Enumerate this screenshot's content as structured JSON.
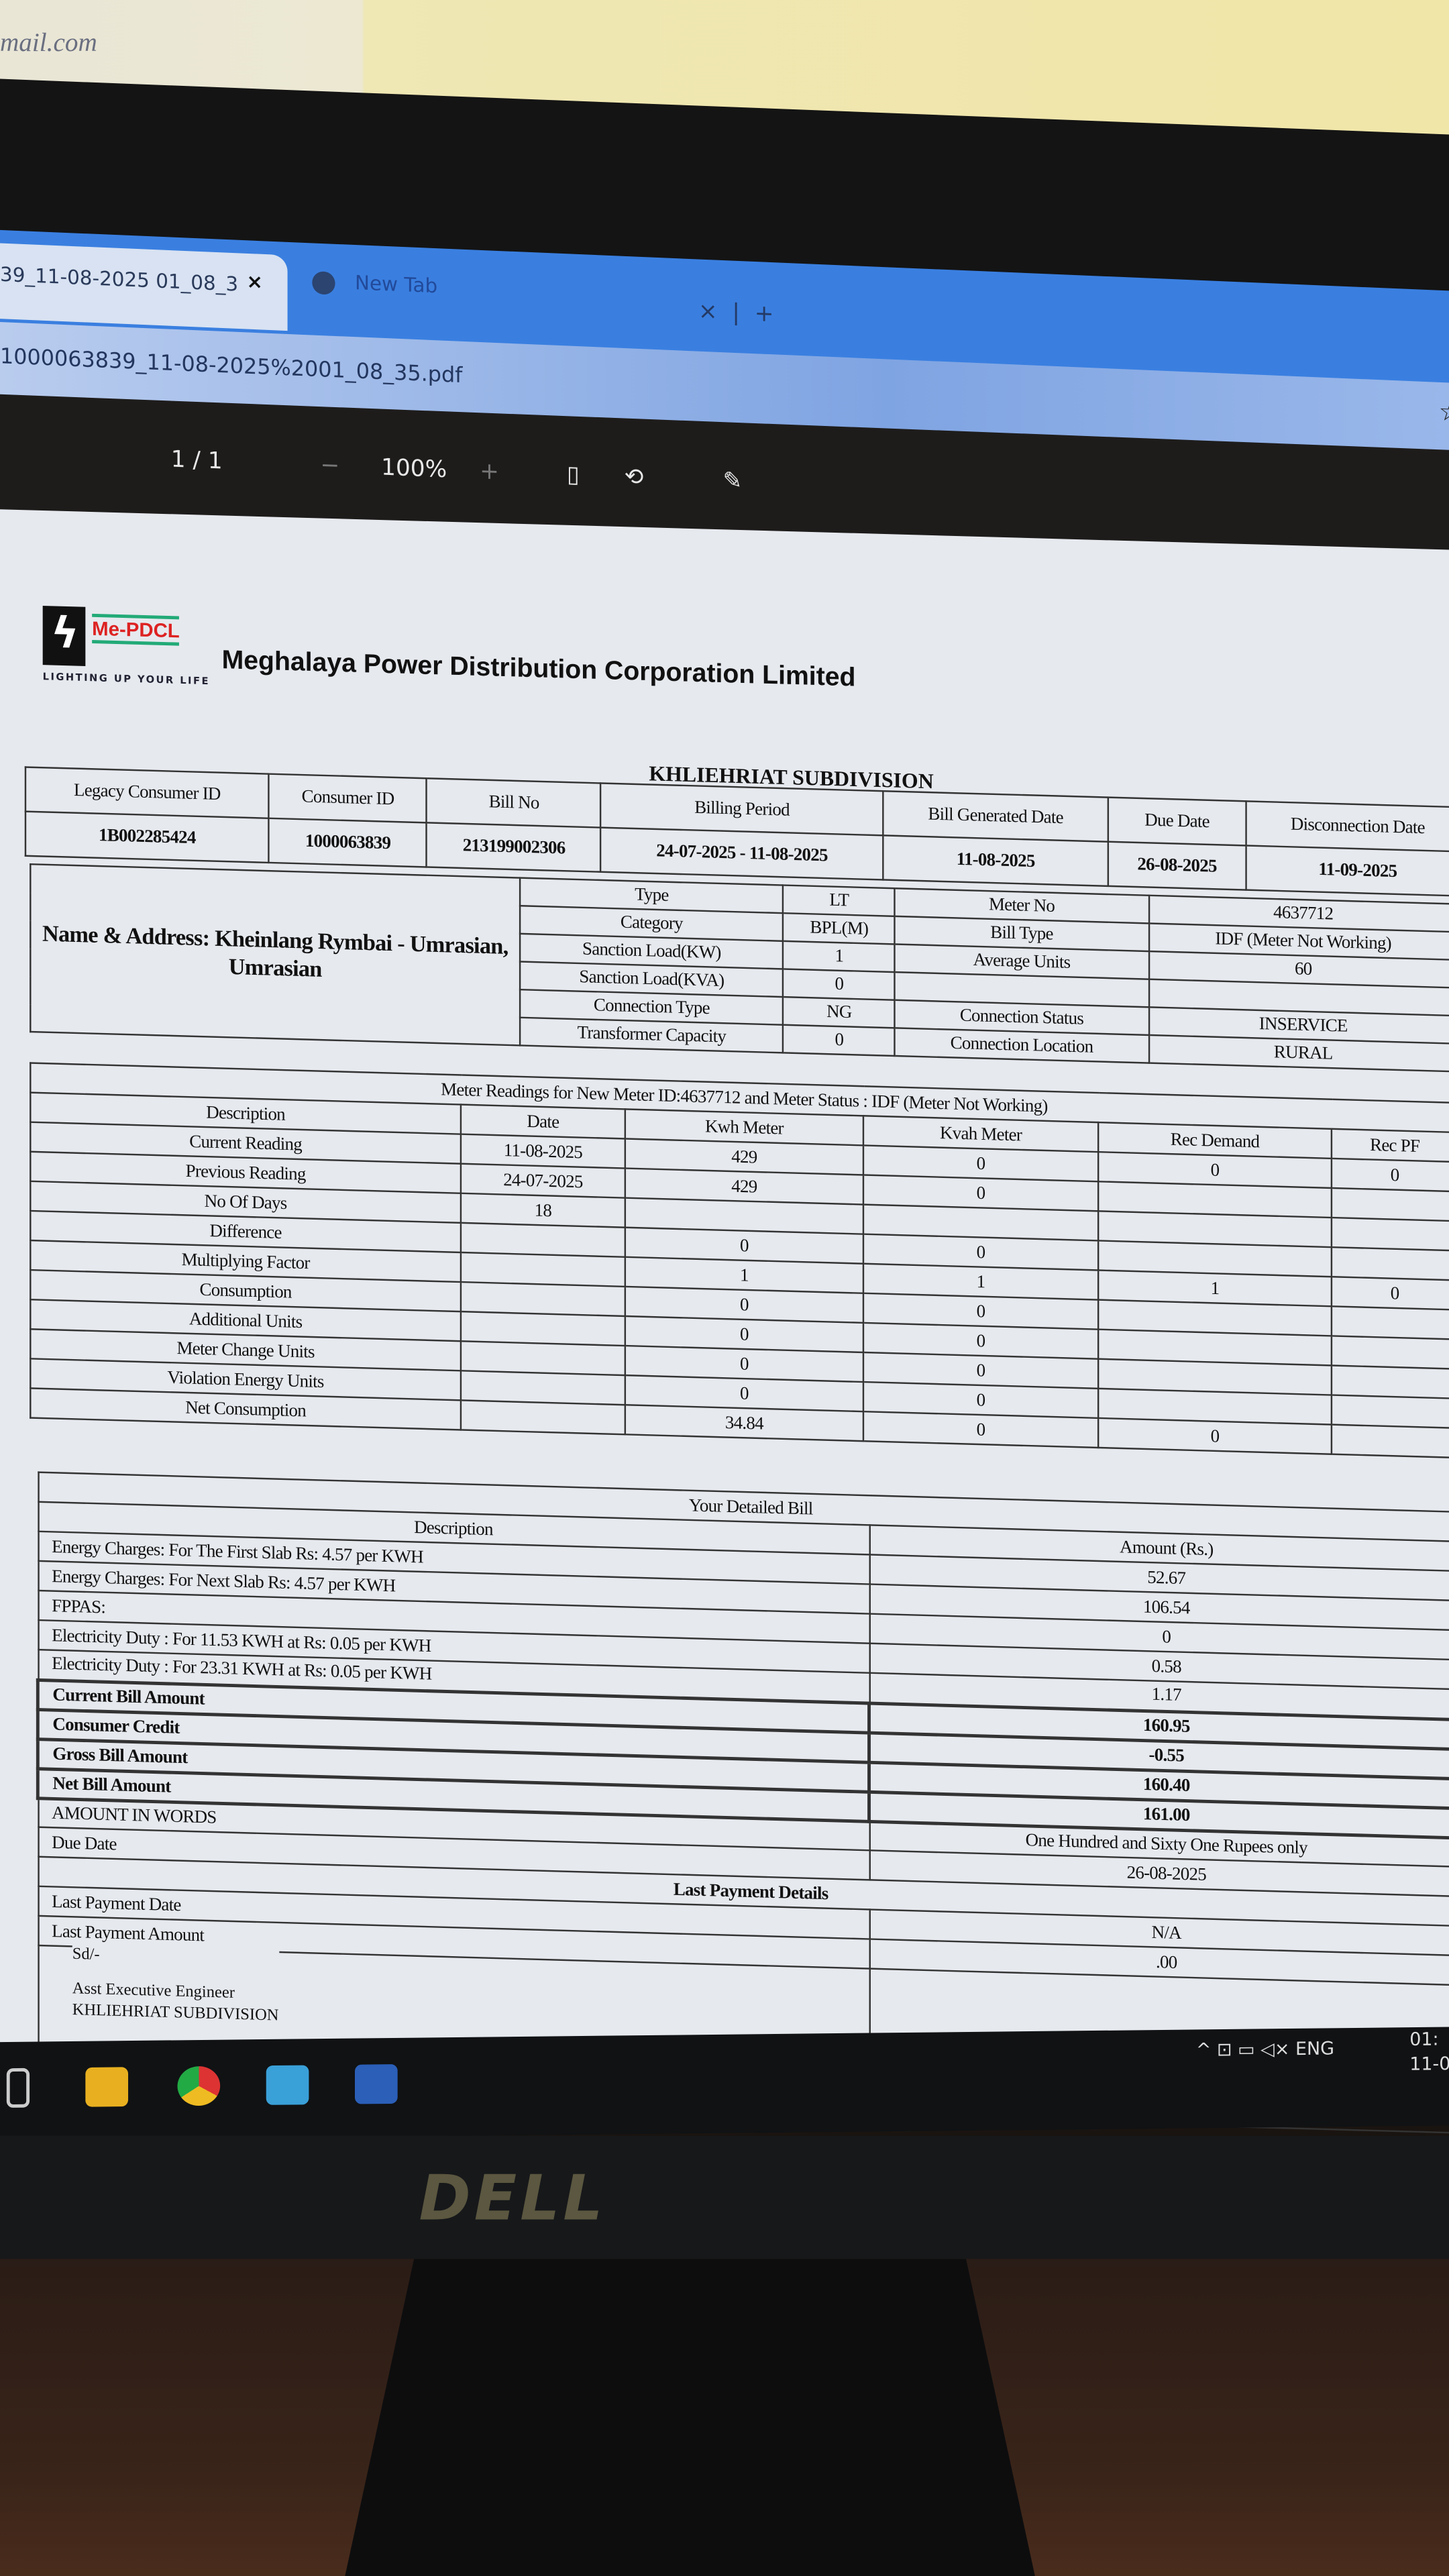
{
  "photo": {
    "paper_text": "mail.com",
    "monitor_brand": "DELL"
  },
  "browser": {
    "active_tab": "39_11-08-2025 01_08_3",
    "active_tab_close": "×",
    "new_tab": "New Tab",
    "tab_close": "×",
    "add_tab": "+",
    "url": "1000063839_11-08-2025%2001_08_35.pdf",
    "bookmark_icon": "star-icon"
  },
  "pdf_toolbar": {
    "page": "1 / 1",
    "zoom_out": "−",
    "zoom": "100%",
    "zoom_in": "+",
    "fit_icon": "fit-page-icon",
    "rotate_icon": "rotate-icon",
    "annotate_icon": "pen-icon"
  },
  "bill": {
    "logo_brand": "Me-PDCL",
    "logo_tagline": "LIGHTING UP YOUR LIFE",
    "company": "Meghalaya Power Distribution Corporation  Limited",
    "subdivision": "KHLIEHRIAT SUBDIVISION",
    "header": {
      "labels": [
        "Legacy Consumer ID",
        "Consumer ID",
        "Bill No",
        "Billing Period",
        "Bill Generated Date",
        "Due Date",
        "Disconnection Date"
      ],
      "values": [
        "1B002285424",
        "1000063839",
        "213199002306",
        "24-07-2025 - 11-08-2025",
        "11-08-2025",
        "26-08-2025",
        "11-09-2025"
      ]
    },
    "name_address": "Name & Address: Kheinlang Rymbai - Umrasian, Umrasian",
    "info": {
      "left": [
        [
          "Type",
          "LT"
        ],
        [
          "Category",
          "BPL(M)"
        ],
        [
          "Sanction Load(KW)",
          "1"
        ],
        [
          "Sanction Load(KVA)",
          "0"
        ],
        [
          "Connection Type",
          "NG"
        ],
        [
          "Transformer Capacity",
          "0"
        ]
      ],
      "right": [
        [
          "Meter No",
          "4637712"
        ],
        [
          "Bill Type",
          "IDF (Meter Not Working)"
        ],
        [
          "Average Units",
          "60"
        ],
        [
          "",
          ""
        ],
        [
          "Connection Status",
          "INSERVICE"
        ],
        [
          "Connection Location",
          "RURAL"
        ]
      ]
    },
    "meter": {
      "title": "Meter Readings for New Meter ID:4637712 and Meter Status : IDF (Meter Not Working)",
      "columns": [
        "Description",
        "Date",
        "Kwh Meter",
        "Kvah Meter",
        "Rec Demand",
        "Rec PF"
      ],
      "rows": [
        [
          "Current Reading",
          "11-08-2025",
          "429",
          "0",
          "0",
          "0"
        ],
        [
          "Previous Reading",
          "24-07-2025",
          "429",
          "0",
          "",
          ""
        ],
        [
          "No Of Days",
          "18",
          "",
          "",
          "",
          ""
        ],
        [
          "Difference",
          "",
          "0",
          "0",
          "",
          ""
        ],
        [
          "Multiplying Factor",
          "",
          "1",
          "1",
          "1",
          "0"
        ],
        [
          "Consumption",
          "",
          "0",
          "0",
          "",
          ""
        ],
        [
          "Additional Units",
          "",
          "0",
          "0",
          "",
          ""
        ],
        [
          "Meter Change Units",
          "",
          "0",
          "0",
          "",
          ""
        ],
        [
          "Violation Energy Units",
          "",
          "0",
          "0",
          "",
          ""
        ],
        [
          "Net Consumption",
          "",
          "34.84",
          "0",
          "0",
          ""
        ]
      ]
    },
    "detail": {
      "title": "Your Detailed Bill",
      "desc_header": "Description",
      "amount_header": "Amount (Rs.)",
      "rows": [
        [
          "Energy Charges: For The First Slab Rs: 4.57 per KWH",
          "52.67",
          false
        ],
        [
          "Energy Charges: For Next Slab Rs: 4.57 per KWH",
          "106.54",
          false
        ],
        [
          "FPPAS:",
          "0",
          false
        ],
        [
          "Electricity Duty : For 11.53 KWH at Rs: 0.05 per KWH",
          "0.58",
          false
        ],
        [
          "Electricity Duty : For 23.31 KWH at Rs: 0.05 per KWH",
          "1.17",
          false
        ],
        [
          "Current Bill Amount",
          "160.95",
          true
        ],
        [
          "Consumer Credit",
          "-0.55",
          true
        ],
        [
          "Gross Bill Amount",
          "160.40",
          true
        ],
        [
          "Net Bill Amount",
          "161.00",
          true
        ],
        [
          "AMOUNT IN WORDS",
          "One Hundred and Sixty One Rupees only",
          false
        ],
        [
          "Due Date",
          "26-08-2025",
          false
        ]
      ],
      "last_payment_title": "Last Payment Details",
      "last_payment": [
        [
          "Last Payment Date",
          "N/A"
        ],
        [
          "Last Payment Amount",
          ".00"
        ]
      ]
    },
    "signature": {
      "sd": "Sd/-",
      "designation": "Asst Executive Engineer",
      "office": "KHLIEHRIAT SUBDIVISION"
    }
  },
  "taskbar": {
    "tray": "^  ⊡  ▭  ◁×  ENG",
    "time": "01:",
    "date": "11-0"
  }
}
